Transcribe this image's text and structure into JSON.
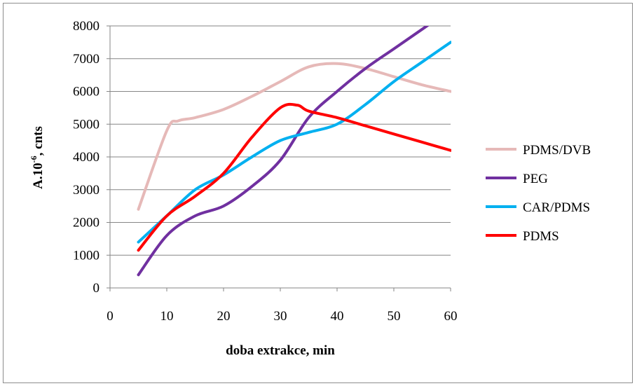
{
  "chart_data": {
    "type": "line",
    "title": "",
    "xlabel": "doba extrakce, min",
    "ylabel": "A.10-6, cnts",
    "ylabel_parts": {
      "base": "A.10",
      "sup": "-6",
      "rest": ", cnts"
    },
    "xlim": [
      0,
      60
    ],
    "ylim": [
      0,
      8000
    ],
    "xticks": [
      0,
      10,
      20,
      30,
      40,
      50,
      60
    ],
    "yticks": [
      0,
      1000,
      2000,
      3000,
      4000,
      5000,
      6000,
      7000,
      8000
    ],
    "grid": "horizontal",
    "legend_position": "right",
    "series": [
      {
        "name": "PDMS/DVB",
        "color": "#E6B9B8",
        "x": [
          5,
          10,
          12,
          15,
          20,
          25,
          30,
          35,
          40,
          45,
          50,
          55,
          60
        ],
        "y": [
          2400,
          4800,
          5100,
          5200,
          5450,
          5850,
          6300,
          6750,
          6850,
          6700,
          6450,
          6200,
          6000
        ]
      },
      {
        "name": "PEG",
        "color": "#7030A0",
        "x": [
          5,
          10,
          15,
          20,
          25,
          30,
          35,
          40,
          45,
          50,
          55,
          60
        ],
        "y": [
          400,
          1600,
          2200,
          2500,
          3100,
          3900,
          5200,
          6000,
          6700,
          7300,
          7900,
          8500
        ]
      },
      {
        "name": "CAR/PDMS",
        "color": "#00B0F0",
        "x": [
          5,
          10,
          15,
          20,
          25,
          30,
          35,
          40,
          45,
          50,
          55,
          60
        ],
        "y": [
          1400,
          2200,
          3000,
          3450,
          4000,
          4500,
          4750,
          5000,
          5600,
          6300,
          6900,
          7500
        ]
      },
      {
        "name": "PDMS",
        "color": "#FF0000",
        "x": [
          5,
          10,
          15,
          20,
          25,
          30,
          33,
          35,
          40,
          45,
          50,
          55,
          60
        ],
        "y": [
          1150,
          2200,
          2800,
          3500,
          4600,
          5500,
          5580,
          5400,
          5200,
          4950,
          4700,
          4450,
          4200
        ]
      }
    ]
  }
}
